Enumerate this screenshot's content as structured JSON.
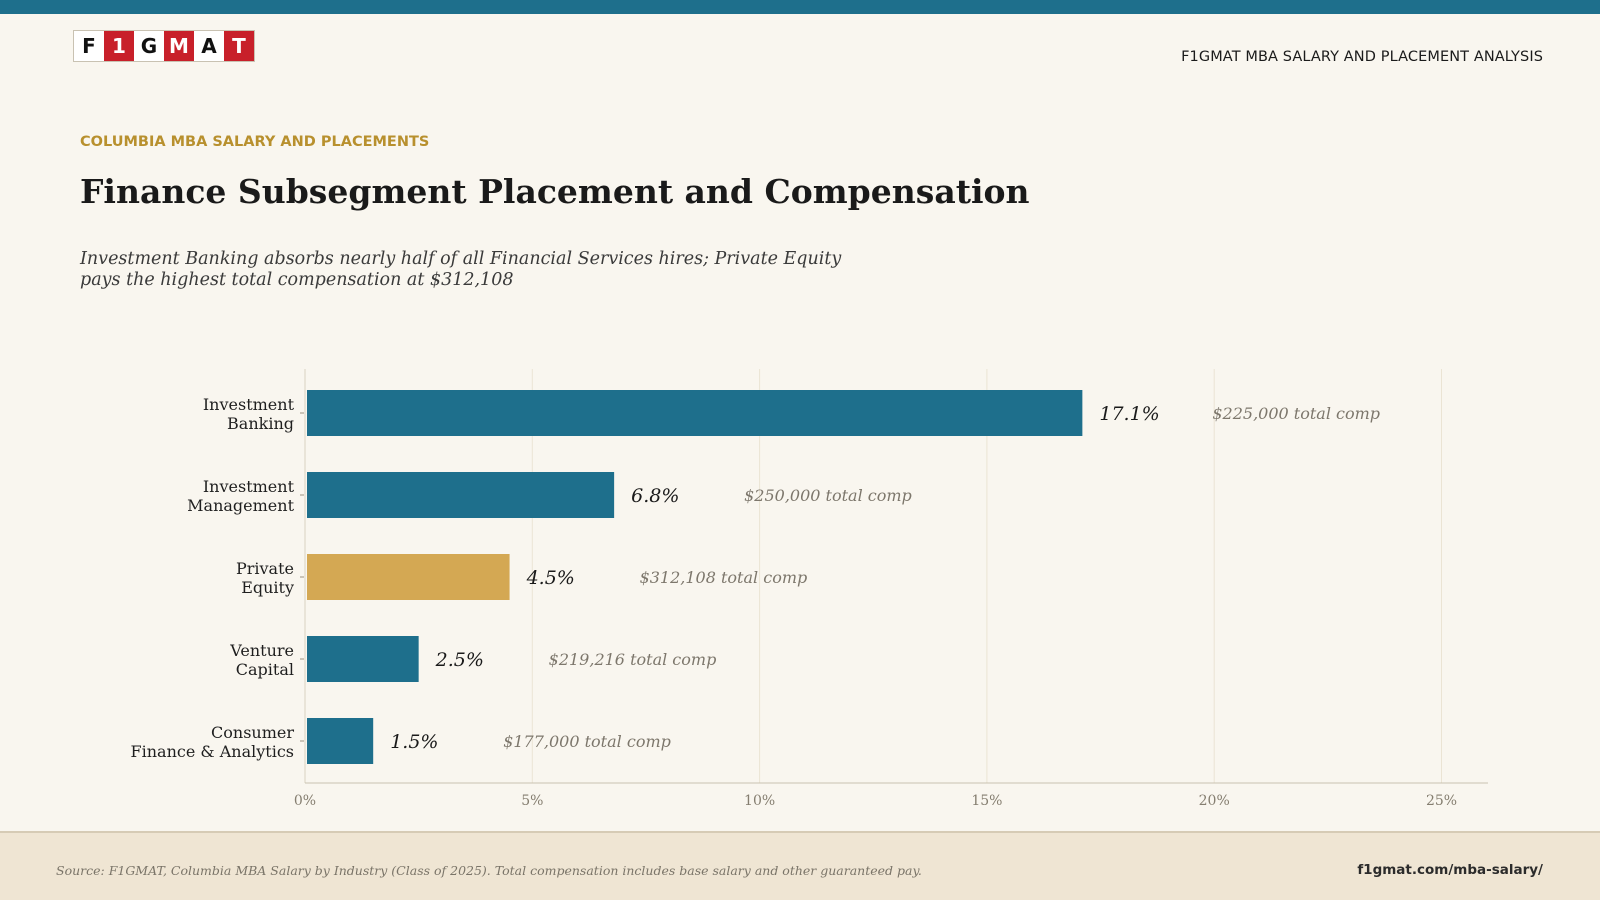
{
  "header": {
    "logo_letters": [
      "F",
      "1",
      "G",
      "M",
      "A",
      "T"
    ],
    "title": "F1GMAT MBA SALARY AND PLACEMENT ANALYSIS"
  },
  "eyebrow": "COLUMBIA MBA SALARY AND PLACEMENTS",
  "title": "Finance Subsegment Placement and Compensation",
  "subtitle": "Investment Banking absorbs nearly half of all Financial Services hires; Private Equity pays the highest total compensation at $312,108",
  "colors": {
    "brand": "#1e6f8c",
    "highlight": "#d4a853",
    "logo_red": "#c8202a",
    "eyebrow": "#b8902e",
    "background": "#f9f6ef"
  },
  "chart_data": {
    "type": "bar",
    "orientation": "horizontal",
    "categories": [
      [
        "Investment",
        "Banking"
      ],
      [
        "Investment",
        "Management"
      ],
      [
        "Private",
        "Equity"
      ],
      [
        "Venture",
        "Capital"
      ],
      [
        "Consumer",
        "Finance & Analytics"
      ]
    ],
    "values": [
      17.1,
      6.8,
      4.5,
      2.5,
      1.5
    ],
    "value_labels": [
      "17.1%",
      "6.8%",
      "4.5%",
      "2.5%",
      "1.5%"
    ],
    "comp_labels": [
      "$225,000 total comp",
      "$250,000 total comp",
      "$312,108 total comp",
      "$219,216 total comp",
      "$177,000 total comp"
    ],
    "highlight_index": 2,
    "xlim": [
      0,
      26
    ],
    "xticks": [
      0,
      5,
      10,
      15,
      20,
      25
    ],
    "xtick_labels": [
      "0%",
      "5%",
      "10%",
      "15%",
      "20%",
      "25%"
    ],
    "grid": true,
    "xlabel": "",
    "ylabel": ""
  },
  "footer": {
    "source": "Source: F1GMAT, Columbia MBA Salary by Industry (Class of 2025). Total compensation includes base salary and other guaranteed pay.",
    "url": "f1gmat.com/mba-salary/"
  }
}
